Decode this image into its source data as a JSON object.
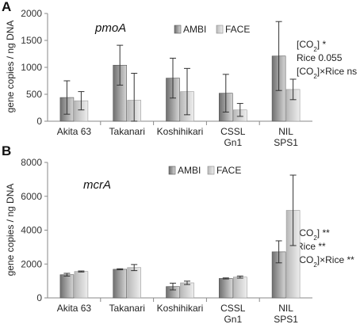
{
  "legend": {
    "ambi": "AMBI",
    "face": "FACE"
  },
  "colors": {
    "ambi_dark": "#6f6f6f",
    "ambi_light": "#d6d6d6",
    "face_dark": "#b9b9b9",
    "face_light": "#eeeeee",
    "error_bar": "#333333"
  },
  "chart_data": [
    {
      "type": "bar",
      "panel": "A",
      "gene": "pmoA",
      "ylabel": "gene copies / ng DNA",
      "ylim": [
        0,
        2000
      ],
      "yticks": [
        "0",
        "500",
        "1000",
        "1500",
        "2000"
      ],
      "ytick_values": [
        0,
        500,
        1000,
        1500,
        2000
      ],
      "categories": [
        [
          "Akita 63"
        ],
        [
          "Takanari"
        ],
        [
          "Koshihikari"
        ],
        [
          "CSSL",
          "Gn1"
        ],
        [
          "NIL",
          "SPS1"
        ]
      ],
      "series": [
        {
          "name": "AMBI",
          "values": [
            440,
            1040,
            800,
            520,
            1210
          ],
          "errors": [
            310,
            370,
            370,
            350,
            640
          ]
        },
        {
          "name": "FACE",
          "values": [
            380,
            390,
            550,
            210,
            590
          ],
          "errors": [
            170,
            500,
            430,
            120,
            190
          ]
        }
      ],
      "annotations": [
        {
          "parts": [
            "[CO",
            "2",
            "] *"
          ]
        },
        {
          "parts": [
            "Rice 0.055"
          ]
        },
        {
          "parts": [
            "[CO",
            "2",
            "]×Rice ns"
          ]
        }
      ],
      "legend_position": "top-right"
    },
    {
      "type": "bar",
      "panel": "B",
      "gene": "mcrA",
      "ylabel": "gene copies / ng DNA",
      "ylim": [
        0,
        8000
      ],
      "yticks": [
        "0",
        "2000",
        "4000",
        "6000",
        "8000"
      ],
      "ytick_values": [
        0,
        2000,
        4000,
        6000,
        8000
      ],
      "categories": [
        [
          "Akita 63"
        ],
        [
          "Takanari"
        ],
        [
          "Koshihikari"
        ],
        [
          "CSSL",
          "Gn1"
        ],
        [
          "NIL",
          "SPS1"
        ]
      ],
      "series": [
        {
          "name": "AMBI",
          "values": [
            1370,
            1690,
            670,
            1150,
            2720
          ],
          "errors": [
            80,
            30,
            200,
            30,
            650
          ]
        },
        {
          "name": "FACE",
          "values": [
            1560,
            1790,
            890,
            1230,
            5170
          ],
          "errors": [
            30,
            180,
            100,
            60,
            2080
          ]
        }
      ],
      "annotations": [
        {
          "parts": [
            "[CO",
            "2",
            "] **"
          ]
        },
        {
          "parts": [
            "Rice **"
          ]
        },
        {
          "parts": [
            "[CO",
            "2",
            "]×Rice **"
          ]
        }
      ],
      "legend_position": "top-center"
    }
  ]
}
